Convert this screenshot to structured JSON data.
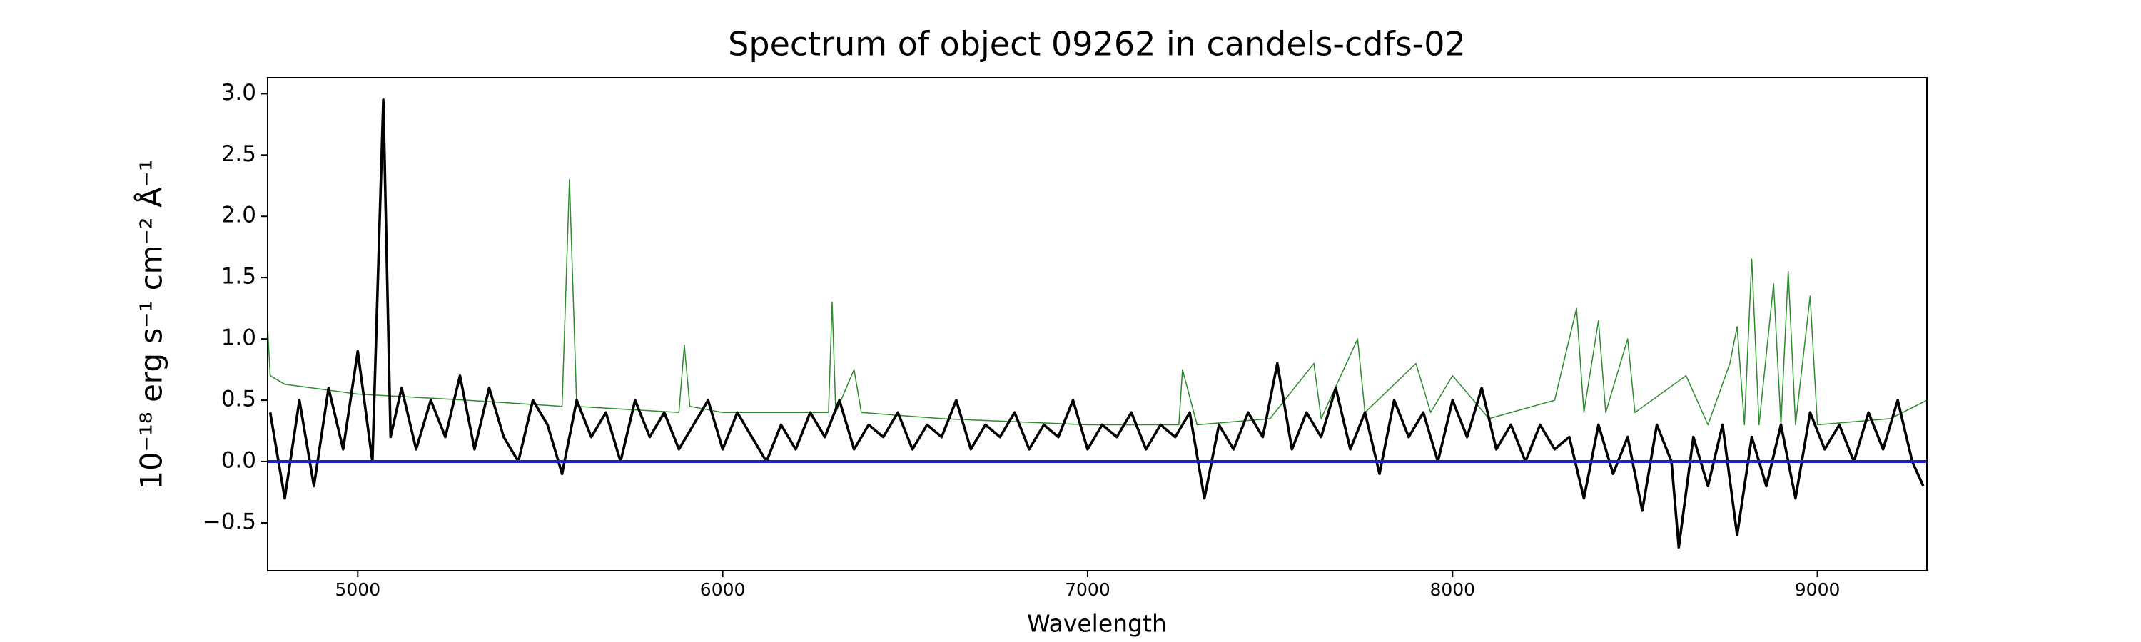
{
  "chart_data": {
    "type": "line",
    "title": "Spectrum of object 09262 in candels-cdfs-02",
    "xlabel": "Wavelength",
    "ylabel": "10⁻¹⁸ erg s⁻¹ cm⁻² Å⁻¹",
    "xlim": [
      4753,
      9300
    ],
    "ylim": [
      -0.89,
      3.13
    ],
    "xticks": [
      5000,
      6000,
      7000,
      8000,
      9000
    ],
    "yticks": [
      {
        "value": -0.5,
        "label": "−0.5"
      },
      {
        "value": 0,
        "label": "0.0"
      },
      {
        "value": 0.5,
        "label": "0.5"
      },
      {
        "value": 1,
        "label": "1.0"
      },
      {
        "value": 1.5,
        "label": "1.5"
      },
      {
        "value": 2,
        "label": "2.0"
      },
      {
        "value": 2.5,
        "label": "2.5"
      },
      {
        "value": 3,
        "label": "3.0"
      }
    ],
    "grid": false,
    "series": [
      {
        "color": "#2e8b2e",
        "x": [
          4753,
          4760,
          4800,
          5000,
          5300,
          5560,
          5580,
          5600,
          5880,
          5895,
          5910,
          6000,
          6290,
          6300,
          6310,
          6360,
          6380,
          6600,
          7000,
          7250,
          7260,
          7300,
          7500,
          7620,
          7640,
          7740,
          7760,
          7900,
          7940,
          8000,
          8100,
          8280,
          8340,
          8360,
          8400,
          8420,
          8480,
          8500,
          8640,
          8700,
          8760,
          8780,
          8800,
          8820,
          8840,
          8880,
          8900,
          8920,
          8940,
          8980,
          9000,
          9200,
          9300
        ],
        "values": [
          1.1,
          0.7,
          0.63,
          0.55,
          0.5,
          0.45,
          2.3,
          0.45,
          0.4,
          0.95,
          0.45,
          0.4,
          0.4,
          1.3,
          0.4,
          0.75,
          0.4,
          0.35,
          0.3,
          0.3,
          0.75,
          0.3,
          0.35,
          0.8,
          0.35,
          1.0,
          0.4,
          0.8,
          0.4,
          0.7,
          0.35,
          0.5,
          1.25,
          0.4,
          1.15,
          0.4,
          1.0,
          0.4,
          0.7,
          0.3,
          0.8,
          1.1,
          0.3,
          1.65,
          0.3,
          1.45,
          0.3,
          1.55,
          0.3,
          1.35,
          0.3,
          0.35,
          0.5
        ]
      },
      {
        "color": "#000000",
        "x": [
          4760,
          4800,
          4840,
          4880,
          4920,
          4960,
          5000,
          5040,
          5070,
          5090,
          5120,
          5160,
          5200,
          5240,
          5280,
          5320,
          5360,
          5400,
          5440,
          5480,
          5520,
          5560,
          5600,
          5640,
          5680,
          5720,
          5760,
          5800,
          5840,
          5880,
          5920,
          5960,
          6000,
          6040,
          6080,
          6120,
          6160,
          6200,
          6240,
          6280,
          6320,
          6360,
          6400,
          6440,
          6480,
          6520,
          6560,
          6600,
          6640,
          6680,
          6720,
          6760,
          6800,
          6840,
          6880,
          6920,
          6960,
          7000,
          7040,
          7080,
          7120,
          7160,
          7200,
          7240,
          7280,
          7320,
          7360,
          7400,
          7440,
          7480,
          7520,
          7560,
          7600,
          7640,
          7680,
          7720,
          7760,
          7800,
          7840,
          7880,
          7920,
          7960,
          8000,
          8040,
          8080,
          8120,
          8160,
          8200,
          8240,
          8280,
          8320,
          8360,
          8400,
          8440,
          8480,
          8520,
          8560,
          8600,
          8620,
          8660,
          8700,
          8740,
          8780,
          8820,
          8860,
          8900,
          8940,
          8980,
          9020,
          9060,
          9100,
          9140,
          9180,
          9220,
          9260,
          9290
        ],
        "values": [
          0.4,
          -0.3,
          0.5,
          -0.2,
          0.6,
          0.1,
          0.9,
          0.0,
          2.95,
          0.2,
          0.6,
          0.1,
          0.5,
          0.2,
          0.7,
          0.1,
          0.6,
          0.2,
          0.0,
          0.5,
          0.3,
          -0.1,
          0.5,
          0.2,
          0.4,
          0.0,
          0.5,
          0.2,
          0.4,
          0.1,
          0.3,
          0.5,
          0.1,
          0.4,
          0.2,
          0.0,
          0.3,
          0.1,
          0.4,
          0.2,
          0.5,
          0.1,
          0.3,
          0.2,
          0.4,
          0.1,
          0.3,
          0.2,
          0.5,
          0.1,
          0.3,
          0.2,
          0.4,
          0.1,
          0.3,
          0.2,
          0.5,
          0.1,
          0.3,
          0.2,
          0.4,
          0.1,
          0.3,
          0.2,
          0.4,
          -0.3,
          0.3,
          0.1,
          0.4,
          0.2,
          0.8,
          0.1,
          0.4,
          0.2,
          0.6,
          0.1,
          0.4,
          -0.1,
          0.5,
          0.2,
          0.4,
          0.0,
          0.5,
          0.2,
          0.6,
          0.1,
          0.3,
          0.0,
          0.3,
          0.1,
          0.2,
          -0.3,
          0.3,
          -0.1,
          0.2,
          -0.4,
          0.3,
          0.0,
          -0.7,
          0.2,
          -0.2,
          0.3,
          -0.6,
          0.2,
          -0.2,
          0.3,
          -0.3,
          0.4,
          0.1,
          0.3,
          0.0,
          0.4,
          0.1,
          0.5,
          0.0,
          -0.2
        ]
      },
      {
        "color": "#1f1fcc",
        "x": [
          4753,
          9300
        ],
        "values": [
          0,
          0
        ]
      }
    ]
  }
}
